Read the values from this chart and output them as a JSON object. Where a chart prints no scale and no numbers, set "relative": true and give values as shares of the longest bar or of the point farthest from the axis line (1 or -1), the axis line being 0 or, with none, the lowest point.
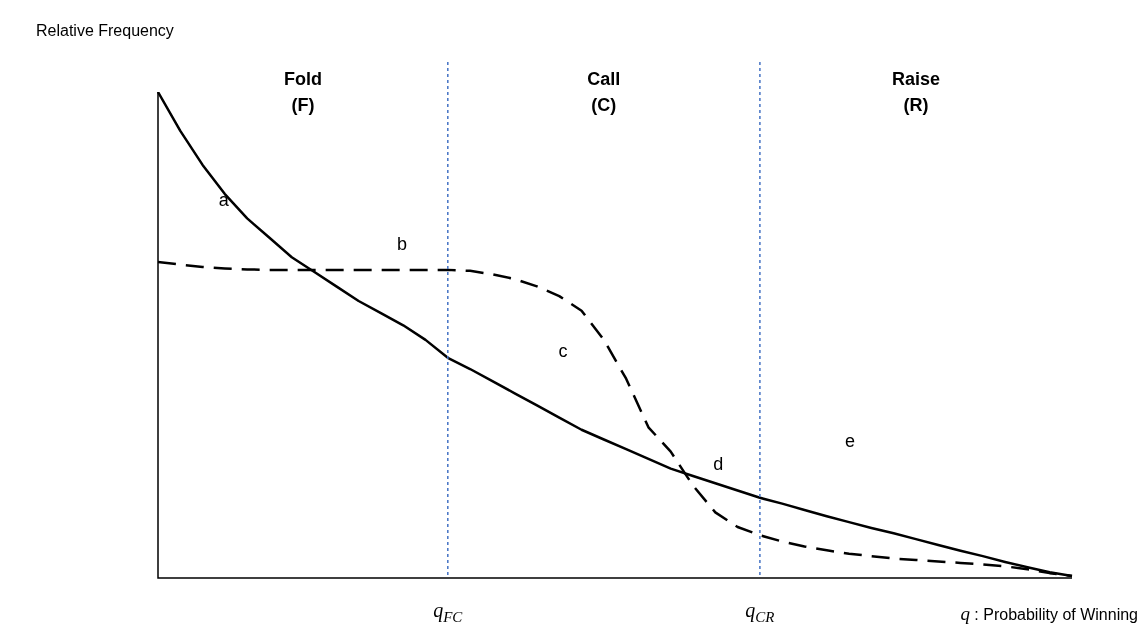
{
  "chart_data": {
    "type": "line",
    "relative": true,
    "ylabel": "Relative Frequency",
    "xlabel": "q : Probability of Winning",
    "grid": false,
    "legend": false,
    "marker": "none",
    "categories": [
      null,
      null,
      null,
      null,
      null,
      null,
      null,
      null,
      null,
      null,
      null,
      null,
      null,
      "q$_{FC}$",
      null,
      null,
      null,
      null,
      null,
      null,
      null,
      null,
      null,
      null,
      null,
      null,
      null,
      "q$_{CR}$",
      null,
      null,
      null,
      null,
      null,
      null,
      null,
      null,
      null,
      null,
      null,
      null,
      null,
      null
    ],
    "series": [
      {
        "color": "#000000",
        "line_style": "solid",
        "values": [
          1,
          0.92,
          0.85,
          0.79,
          0.74,
          0.7,
          0.66,
          0.63,
          0.6,
          0.57,
          0.545,
          0.52,
          0.49,
          0.453,
          0.43,
          0.405,
          0.38,
          0.355,
          0.33,
          0.305,
          0.285,
          0.265,
          0.245,
          0.225,
          0.21,
          0.195,
          0.18,
          0.165,
          0.153,
          0.14,
          0.127,
          0.115,
          0.103,
          0.092,
          0.08,
          0.068,
          0.056,
          0.045,
          0.033,
          0.022,
          0.012,
          0.004
        ]
      },
      {
        "color": "#000000",
        "line_style": "dashed",
        "values": [
          0.65,
          0.645,
          0.64,
          0.637,
          0.635,
          0.634,
          0.634,
          0.634,
          0.634,
          0.634,
          0.634,
          0.634,
          0.634,
          0.634,
          0.632,
          0.625,
          0.615,
          0.6,
          0.58,
          0.55,
          0.49,
          0.41,
          0.31,
          0.26,
          0.19,
          0.135,
          0.105,
          0.088,
          0.075,
          0.065,
          0.057,
          0.05,
          0.045,
          0.04,
          0.037,
          0.034,
          0.031,
          0.028,
          0.024,
          0.018,
          0.01,
          0.004
        ]
      }
    ],
    "ref_lines": [
      {
        "axis": "x",
        "value": "q$_{FC}$",
        "color": "#4472c4",
        "line_style": "dotted"
      },
      {
        "axis": "x",
        "value": "q$_{CR}$",
        "color": "#4472c4",
        "line_style": "dotted"
      }
    ],
    "annotations": [
      "Fold\n(F)",
      "Call\n(C)",
      "Raise\n(R)",
      "a",
      "b",
      "c",
      "d",
      "e"
    ]
  }
}
